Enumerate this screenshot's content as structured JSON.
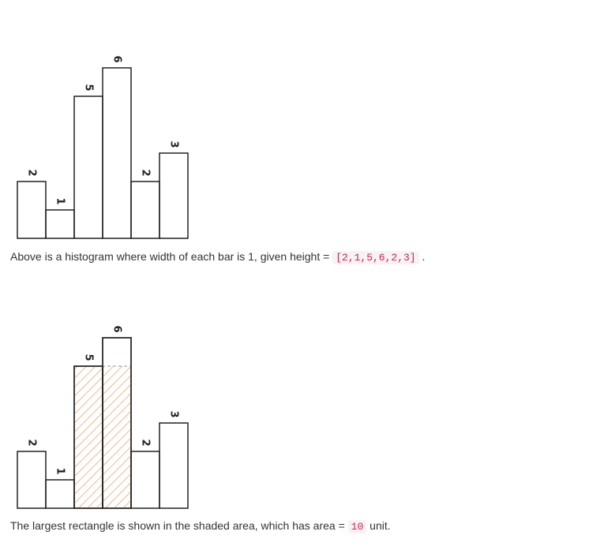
{
  "captions": {
    "first": {
      "prefix": "Above is a histogram where width of each bar is 1, given height = ",
      "code": "[2,1,5,6,2,3]",
      "suffix": " ."
    },
    "second": {
      "prefix": "The largest rectangle is shown in the shaded area, which has area = ",
      "code": "10",
      "suffix": " unit."
    }
  },
  "colors": {
    "bar_stroke": "#222222",
    "hatch": "#f0a060"
  },
  "chart_data": [
    {
      "type": "bar",
      "categories": [
        "",
        "",
        "",
        "",
        "",
        ""
      ],
      "values": [
        2,
        1,
        5,
        6,
        2,
        3
      ],
      "data_labels": [
        "2",
        "1",
        "5",
        "6",
        "2",
        "3"
      ],
      "ylim": [
        0,
        6
      ],
      "grid": false
    },
    {
      "type": "bar",
      "categories": [
        "",
        "",
        "",
        "",
        "",
        ""
      ],
      "values": [
        2,
        1,
        5,
        6,
        2,
        3
      ],
      "data_labels": [
        "2",
        "1",
        "5",
        "6",
        "2",
        "3"
      ],
      "ylim": [
        0,
        6
      ],
      "grid": false,
      "highlight": {
        "start_index": 2,
        "end_index": 3,
        "height": 5
      }
    }
  ]
}
